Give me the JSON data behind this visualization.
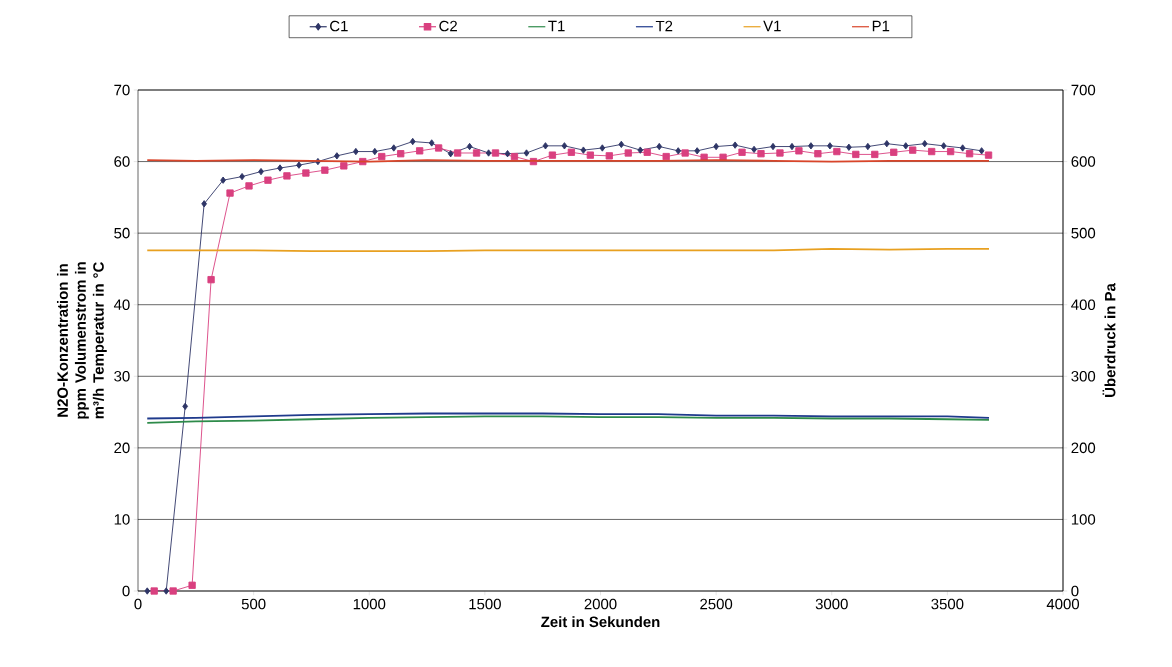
{
  "chart_data": {
    "type": "line",
    "xlabel": "Zeit in Sekunden",
    "ylabel": "N2O-Konzentration in ppm Volumenstrom in m³/h Temperatur in °C",
    "y2label": "Überdruck in Pa",
    "xlim": [
      0,
      4000
    ],
    "xticks": [
      0,
      500,
      1000,
      1500,
      2000,
      2500,
      3000,
      3500,
      4000
    ],
    "ylim": [
      0,
      70
    ],
    "yticks": [
      0,
      10,
      20,
      30,
      40,
      50,
      60,
      70
    ],
    "y2lim": [
      0,
      700
    ],
    "y2ticks": [
      0,
      100,
      200,
      300,
      400,
      500,
      600,
      700
    ],
    "grid": "y",
    "legend": "top",
    "line_style": "solid",
    "series": [
      {
        "name": "C1",
        "color": "#2e3566",
        "marker": "diamond",
        "x": [
          40,
          122,
          204,
          286,
          368,
          450,
          532,
          614,
          696,
          778,
          860,
          942,
          1024,
          1106,
          1188,
          1270,
          1352,
          1434,
          1516,
          1598,
          1680,
          1762,
          1844,
          1926,
          2008,
          2090,
          2172,
          2254,
          2336,
          2418,
          2500,
          2582,
          2664,
          2746,
          2828,
          2910,
          2992,
          3074,
          3156,
          3238,
          3320,
          3402,
          3484,
          3566,
          3648
        ],
        "values": [
          0,
          0,
          25.8,
          54.1,
          57.4,
          57.9,
          58.6,
          59.1,
          59.5,
          60.0,
          60.8,
          61.4,
          61.4,
          61.9,
          62.8,
          62.6,
          61.1,
          62.1,
          61.2,
          61.1,
          61.2,
          62.2,
          62.2,
          61.6,
          61.9,
          62.4,
          61.6,
          62.1,
          61.5,
          61.5,
          62.1,
          62.3,
          61.7,
          62.1,
          62.1,
          62.2,
          62.2,
          62.0,
          62.1,
          62.5,
          62.2,
          62.5,
          62.2,
          61.9,
          61.5
        ]
      },
      {
        "name": "C2",
        "color": "#d9407f",
        "marker": "square",
        "x": [
          70,
          152,
          234,
          316,
          398,
          480,
          562,
          644,
          726,
          808,
          890,
          972,
          1054,
          1136,
          1218,
          1300,
          1382,
          1464,
          1546,
          1628,
          1710,
          1792,
          1874,
          1956,
          2038,
          2120,
          2202,
          2284,
          2366,
          2448,
          2530,
          2612,
          2694,
          2776,
          2858,
          2940,
          3022,
          3104,
          3186,
          3268,
          3350,
          3432,
          3514,
          3596,
          3678
        ],
        "values": [
          0,
          0,
          0.8,
          43.5,
          55.6,
          56.6,
          57.4,
          58.0,
          58.4,
          58.8,
          59.4,
          60.0,
          60.7,
          61.1,
          61.5,
          61.9,
          61.2,
          61.2,
          61.2,
          60.7,
          60.0,
          60.9,
          61.3,
          60.9,
          60.8,
          61.2,
          61.3,
          60.7,
          61.2,
          60.6,
          60.6,
          61.3,
          61.1,
          61.2,
          61.5,
          61.1,
          61.4,
          61.0,
          61.0,
          61.3,
          61.6,
          61.4,
          61.4,
          61.1,
          60.9
        ]
      },
      {
        "name": "T1",
        "color": "#2e8b4a",
        "marker": "none",
        "x": [
          40,
          250,
          500,
          750,
          1000,
          1250,
          1500,
          1750,
          2000,
          2250,
          2500,
          2750,
          3000,
          3250,
          3500,
          3680
        ],
        "values": [
          23.5,
          23.7,
          23.8,
          24.0,
          24.2,
          24.3,
          24.4,
          24.4,
          24.3,
          24.3,
          24.2,
          24.2,
          24.1,
          24.1,
          24.0,
          23.9
        ]
      },
      {
        "name": "T2",
        "color": "#1f3a8c",
        "marker": "none",
        "x": [
          40,
          250,
          500,
          750,
          1000,
          1250,
          1500,
          1750,
          2000,
          2250,
          2500,
          2750,
          3000,
          3250,
          3500,
          3680
        ],
        "values": [
          24.1,
          24.2,
          24.4,
          24.6,
          24.7,
          24.8,
          24.8,
          24.8,
          24.7,
          24.7,
          24.5,
          24.5,
          24.4,
          24.4,
          24.4,
          24.2
        ]
      },
      {
        "name": "V1",
        "color": "#e8a020",
        "marker": "none",
        "x": [
          40,
          250,
          500,
          750,
          1000,
          1250,
          1500,
          1750,
          2000,
          2250,
          2500,
          2750,
          3000,
          3250,
          3500,
          3680
        ],
        "values": [
          47.6,
          47.6,
          47.6,
          47.5,
          47.5,
          47.5,
          47.6,
          47.6,
          47.6,
          47.6,
          47.6,
          47.6,
          47.8,
          47.7,
          47.8,
          47.8
        ]
      },
      {
        "name": "P1",
        "color": "#d9452a",
        "marker": "none",
        "axis": "y2",
        "x": [
          40,
          250,
          500,
          750,
          1000,
          1250,
          1500,
          1750,
          2000,
          2250,
          2500,
          2750,
          3000,
          3250,
          3500,
          3680
        ],
        "values": [
          602,
          601,
          602,
          601,
          600,
          602,
          601,
          601,
          601,
          601,
          602,
          601,
          600,
          601,
          601,
          601
        ]
      }
    ]
  }
}
